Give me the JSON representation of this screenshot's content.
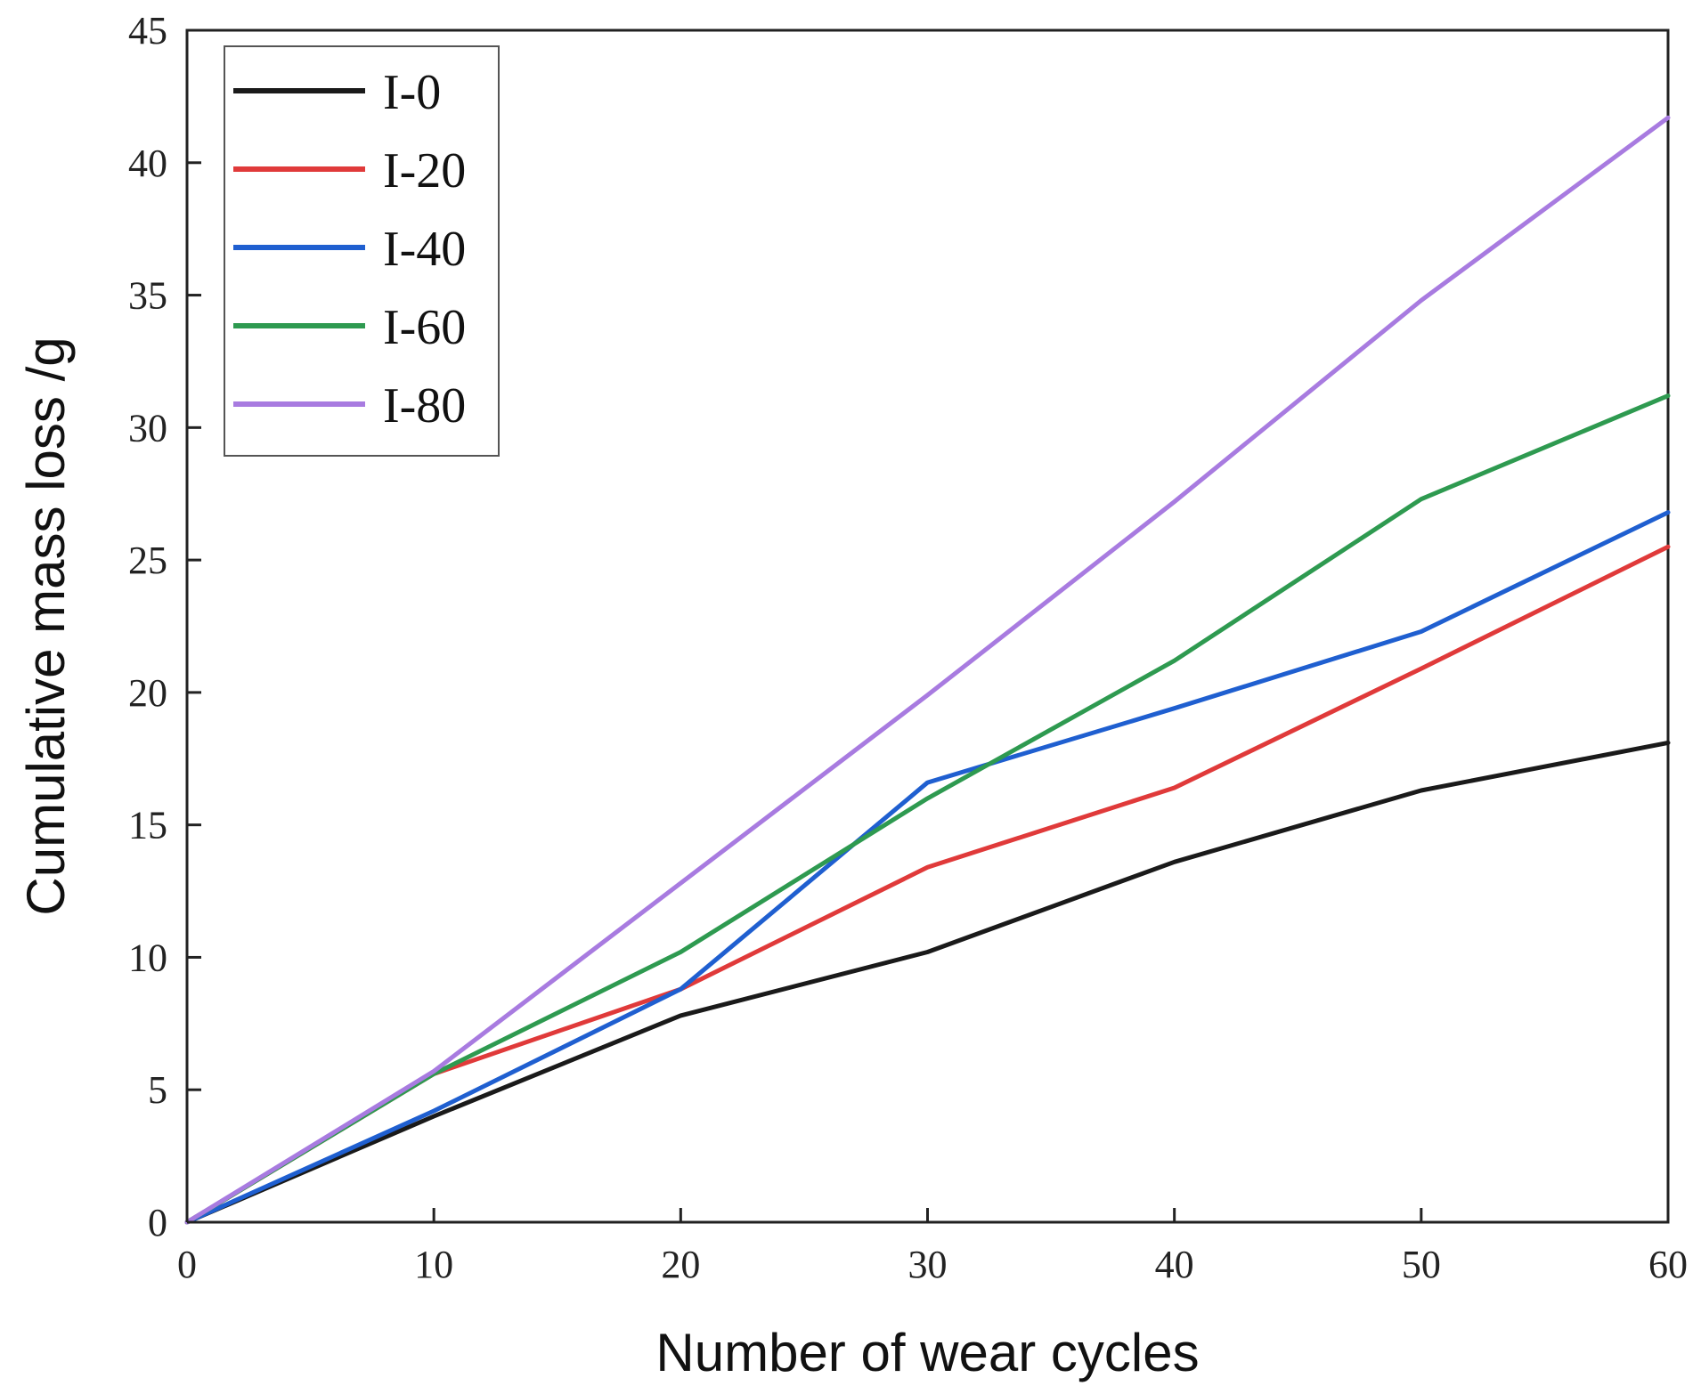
{
  "chart_data": {
    "type": "line",
    "title": "",
    "xlabel": "Number of wear cycles",
    "ylabel": "Cumulative mass loss /g",
    "xlim": [
      0,
      60
    ],
    "ylim": [
      0,
      45
    ],
    "xticks": [
      0,
      10,
      20,
      30,
      40,
      50,
      60
    ],
    "yticks": [
      0,
      5,
      10,
      15,
      20,
      25,
      30,
      35,
      40,
      45
    ],
    "x": [
      0,
      10,
      20,
      30,
      40,
      50,
      60
    ],
    "legend_position": "top-left",
    "grid": false,
    "series": [
      {
        "name": "I-0",
        "color": "#1a1a1a",
        "values": [
          0,
          4.0,
          7.8,
          10.2,
          13.6,
          16.3,
          18.1
        ]
      },
      {
        "name": "I-20",
        "color": "#e03a3a",
        "values": [
          0,
          5.6,
          8.8,
          13.4,
          16.4,
          20.9,
          25.5
        ]
      },
      {
        "name": "I-40",
        "color": "#1f5fd0",
        "values": [
          0,
          4.2,
          8.8,
          16.6,
          19.4,
          22.3,
          26.8
        ]
      },
      {
        "name": "I-60",
        "color": "#2e9a50",
        "values": [
          0,
          5.6,
          10.2,
          16.0,
          21.2,
          27.3,
          31.2
        ]
      },
      {
        "name": "I-80",
        "color": "#a87be0",
        "values": [
          0,
          5.7,
          12.8,
          19.9,
          27.2,
          34.8,
          41.7
        ]
      }
    ]
  }
}
